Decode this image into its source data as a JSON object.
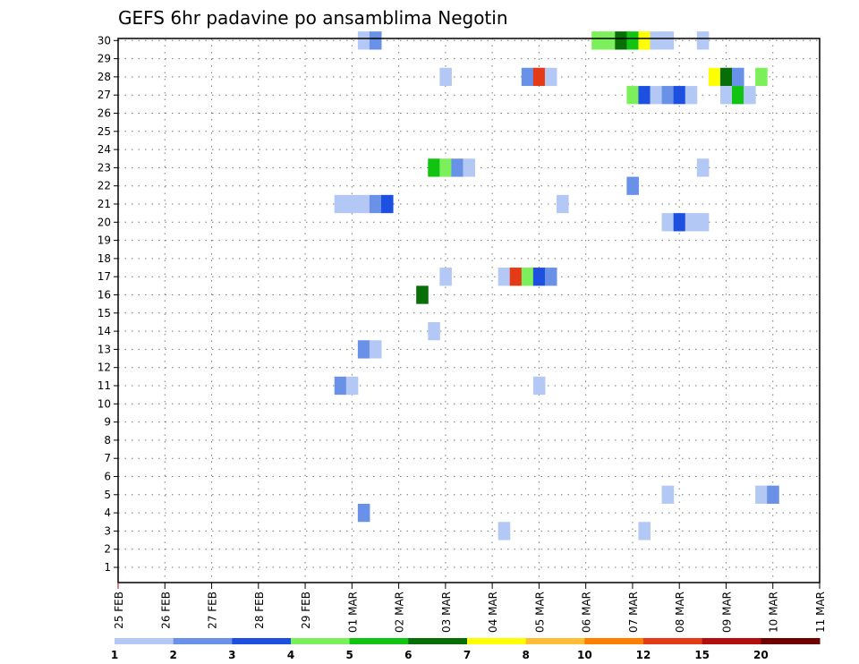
{
  "chart_data": {
    "type": "heatmap",
    "title": "GEFS 6hr padavine po ansamblima Negotin",
    "xlabel": "",
    "ylabel": "",
    "x_ticks": [
      "25 FEB",
      "26 FEB",
      "27 FEB",
      "28 FEB",
      "29 FEB",
      "01 MAR",
      "02 MAR",
      "03 MAR",
      "04 MAR",
      "05 MAR",
      "06 MAR",
      "07 MAR",
      "08 MAR",
      "09 MAR",
      "10 MAR",
      "11 MAR"
    ],
    "y_ticks": [
      "1",
      "2",
      "3",
      "4",
      "5",
      "6",
      "7",
      "8",
      "9",
      "10",
      "11",
      "12",
      "13",
      "14",
      "15",
      "16",
      "17",
      "18",
      "19",
      "20",
      "21",
      "22",
      "23",
      "24",
      "25",
      "26",
      "27",
      "28",
      "29",
      "30"
    ],
    "grid": true,
    "legend_levels": [
      "1",
      "2",
      "3",
      "4",
      "5",
      "6",
      "7",
      "8",
      "10",
      "12",
      "15",
      "20"
    ],
    "colors": [
      "#b4c8f5",
      "#6a91e8",
      "#1d4fe0",
      "#7cf05a",
      "#11c411",
      "#086e08",
      "#ffff00",
      "#ffbe36",
      "#ff7f00",
      "#e53a16",
      "#b40f0f",
      "#6e0000"
    ],
    "cells": [
      {
        "member": 30,
        "day": 5.25,
        "level": 0
      },
      {
        "member": 30,
        "day": 5.5,
        "level": 1
      },
      {
        "member": 30,
        "day": 10.25,
        "level": 3
      },
      {
        "member": 30,
        "day": 10.5,
        "level": 3
      },
      {
        "member": 30,
        "day": 10.75,
        "level": 5
      },
      {
        "member": 30,
        "day": 11.0,
        "level": 4
      },
      {
        "member": 30,
        "day": 11.25,
        "level": 6
      },
      {
        "member": 30,
        "day": 11.5,
        "level": 0
      },
      {
        "member": 30,
        "day": 11.75,
        "level": 0
      },
      {
        "member": 30,
        "day": 12.5,
        "level": 0
      },
      {
        "member": 28,
        "day": 7.0,
        "level": 0
      },
      {
        "member": 28,
        "day": 8.75,
        "level": 1
      },
      {
        "member": 28,
        "day": 9.0,
        "level": 9
      },
      {
        "member": 28,
        "day": 9.25,
        "level": 0
      },
      {
        "member": 28,
        "day": 12.75,
        "level": 6
      },
      {
        "member": 28,
        "day": 13.0,
        "level": 5
      },
      {
        "member": 28,
        "day": 13.25,
        "level": 1
      },
      {
        "member": 28,
        "day": 13.75,
        "level": 3
      },
      {
        "member": 27,
        "day": 11.0,
        "level": 3
      },
      {
        "member": 27,
        "day": 11.25,
        "level": 2
      },
      {
        "member": 27,
        "day": 11.5,
        "level": 0
      },
      {
        "member": 27,
        "day": 11.75,
        "level": 1
      },
      {
        "member": 27,
        "day": 12.0,
        "level": 2
      },
      {
        "member": 27,
        "day": 12.25,
        "level": 0
      },
      {
        "member": 27,
        "day": 13.0,
        "level": 0
      },
      {
        "member": 27,
        "day": 13.25,
        "level": 4
      },
      {
        "member": 27,
        "day": 13.5,
        "level": 0
      },
      {
        "member": 23,
        "day": 6.75,
        "level": 4
      },
      {
        "member": 23,
        "day": 7.0,
        "level": 3
      },
      {
        "member": 23,
        "day": 7.25,
        "level": 1
      },
      {
        "member": 23,
        "day": 7.5,
        "level": 0
      },
      {
        "member": 23,
        "day": 12.5,
        "level": 0
      },
      {
        "member": 22,
        "day": 11.0,
        "level": 1
      },
      {
        "member": 21,
        "day": 4.75,
        "level": 0
      },
      {
        "member": 21,
        "day": 5.0,
        "level": 0
      },
      {
        "member": 21,
        "day": 5.25,
        "level": 0
      },
      {
        "member": 21,
        "day": 5.5,
        "level": 1
      },
      {
        "member": 21,
        "day": 5.75,
        "level": 2
      },
      {
        "member": 21,
        "day": 9.5,
        "level": 0
      },
      {
        "member": 20,
        "day": 11.75,
        "level": 0
      },
      {
        "member": 20,
        "day": 12.0,
        "level": 2
      },
      {
        "member": 20,
        "day": 12.25,
        "level": 0
      },
      {
        "member": 20,
        "day": 12.5,
        "level": 0
      },
      {
        "member": 17,
        "day": 7.0,
        "level": 0
      },
      {
        "member": 17,
        "day": 8.25,
        "level": 0
      },
      {
        "member": 17,
        "day": 8.5,
        "level": 9
      },
      {
        "member": 17,
        "day": 8.75,
        "level": 3
      },
      {
        "member": 17,
        "day": 9.0,
        "level": 2
      },
      {
        "member": 17,
        "day": 9.25,
        "level": 1
      },
      {
        "member": 16,
        "day": 6.5,
        "level": 5
      },
      {
        "member": 14,
        "day": 6.75,
        "level": 0
      },
      {
        "member": 13,
        "day": 5.25,
        "level": 1
      },
      {
        "member": 13,
        "day": 5.5,
        "level": 0
      },
      {
        "member": 11,
        "day": 4.75,
        "level": 1
      },
      {
        "member": 11,
        "day": 5.0,
        "level": 0
      },
      {
        "member": 11,
        "day": 9.0,
        "level": 0
      },
      {
        "member": 5,
        "day": 11.75,
        "level": 0
      },
      {
        "member": 5,
        "day": 13.75,
        "level": 0
      },
      {
        "member": 5,
        "day": 14.0,
        "level": 1
      },
      {
        "member": 4,
        "day": 5.25,
        "level": 1
      },
      {
        "member": 3,
        "day": 8.25,
        "level": 0
      },
      {
        "member": 3,
        "day": 11.25,
        "level": 0
      }
    ]
  }
}
